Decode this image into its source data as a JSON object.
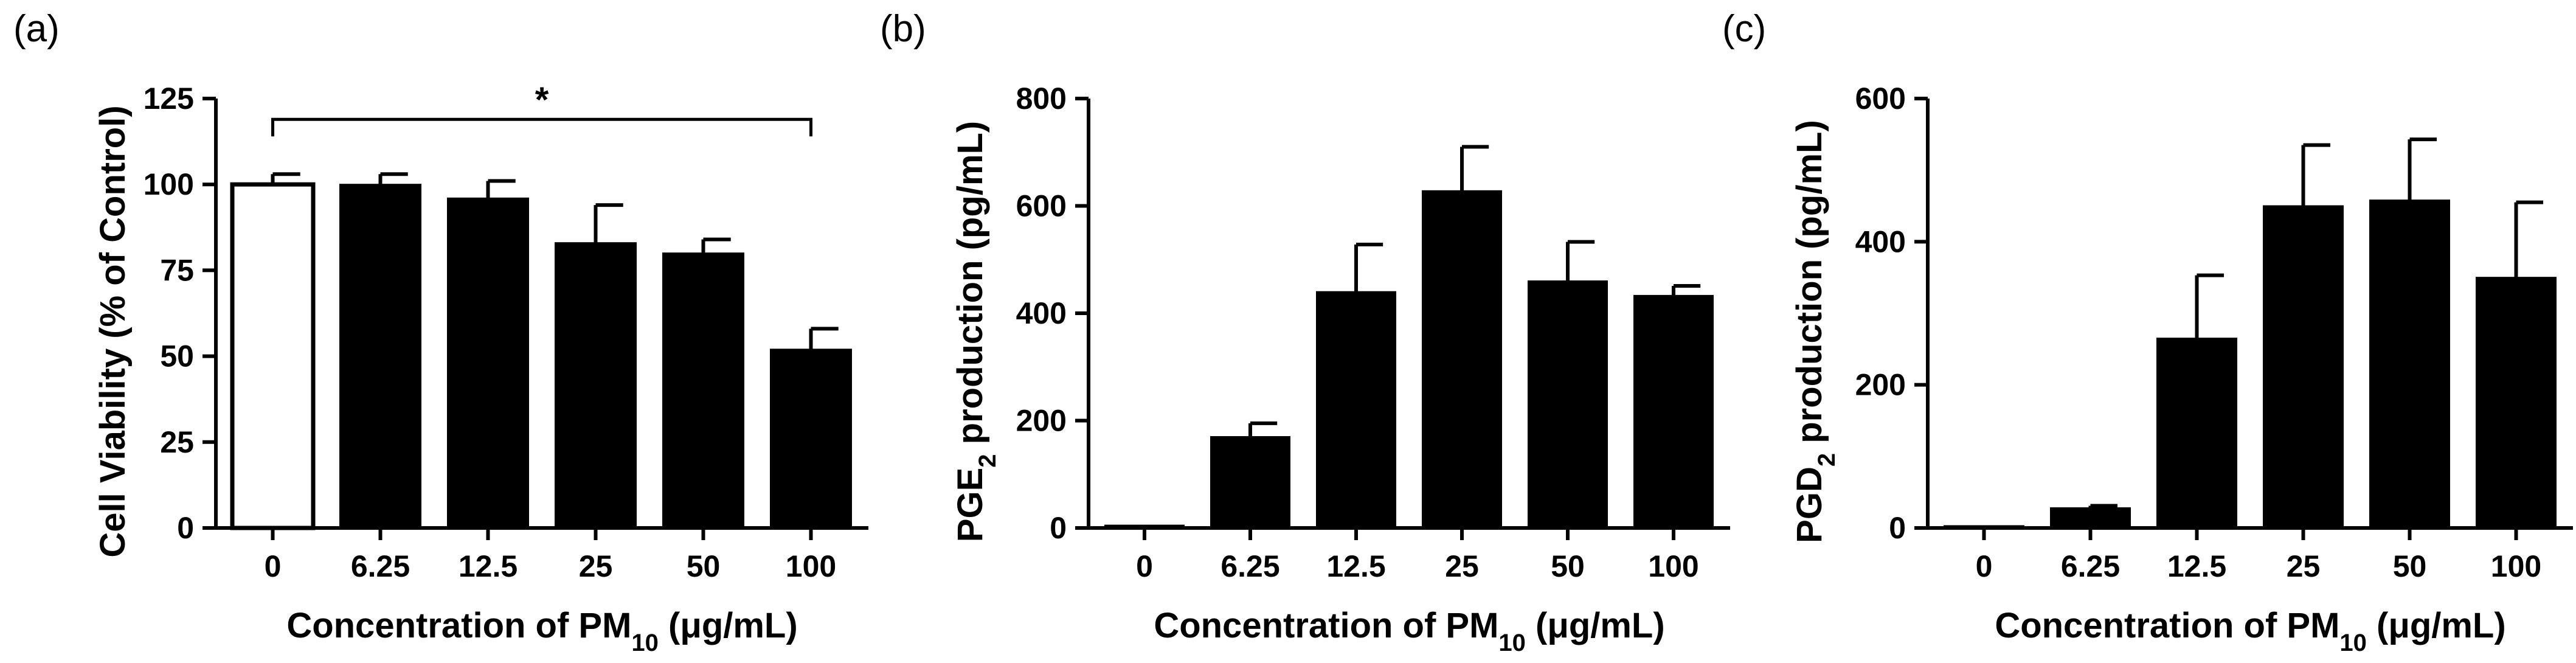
{
  "panels": [
    {
      "letter": "(a)",
      "chart_data": {
        "type": "bar",
        "categories": [
          "0",
          "6.25",
          "12.5",
          "25",
          "50",
          "100"
        ],
        "values": [
          100,
          100,
          96,
          83,
          80,
          52
        ],
        "errors": [
          3,
          3,
          5,
          11,
          4,
          6
        ],
        "fills": [
          "#ffffff",
          "#000000",
          "#000000",
          "#000000",
          "#000000",
          "#000000"
        ],
        "ylabel": "Cell Viability (% of Control)",
        "xlabel": {
          "prefix": "Concentration of PM",
          "sub": "10",
          "suffix": " (μg/mL)"
        },
        "ylim": [
          0,
          125
        ],
        "yticks": [
          0,
          25,
          50,
          75,
          100,
          125
        ],
        "annotation": {
          "text": "*",
          "from": "0",
          "to": "100",
          "y": 120
        }
      }
    },
    {
      "letter": "(b)",
      "chart_data": {
        "type": "bar",
        "categories": [
          "0",
          "6.25",
          "12.5",
          "25",
          "50",
          "100"
        ],
        "values": [
          5,
          170,
          440,
          628,
          460,
          433
        ],
        "errors": [
          0,
          25,
          88,
          82,
          73,
          18
        ],
        "fills": [
          "#000000",
          "#000000",
          "#000000",
          "#000000",
          "#000000",
          "#000000"
        ],
        "ylabel": {
          "prefix": "PGE",
          "sub": "2",
          "suffix": " production (pg/mL)"
        },
        "xlabel": {
          "prefix": "Concentration of PM",
          "sub": "10",
          "suffix": " (μg/mL)"
        },
        "ylim": [
          0,
          800
        ],
        "yticks": [
          0,
          200,
          400,
          600,
          800
        ]
      }
    },
    {
      "letter": "(c)",
      "chart_data": {
        "type": "bar",
        "categories": [
          "0",
          "6.25",
          "12.5",
          "25",
          "50",
          "100"
        ],
        "values": [
          3,
          28,
          265,
          450,
          458,
          350
        ],
        "errors": [
          0,
          3,
          88,
          85,
          85,
          105
        ],
        "fills": [
          "#000000",
          "#000000",
          "#000000",
          "#000000",
          "#000000",
          "#000000"
        ],
        "ylabel": {
          "prefix": "PGD",
          "sub": "2",
          "suffix": " production (pg/mL)"
        },
        "xlabel": {
          "prefix": "Concentration of PM",
          "sub": "10",
          "suffix": " (μg/mL)"
        },
        "ylim": [
          0,
          600
        ],
        "yticks": [
          0,
          200,
          400,
          600
        ]
      }
    }
  ]
}
